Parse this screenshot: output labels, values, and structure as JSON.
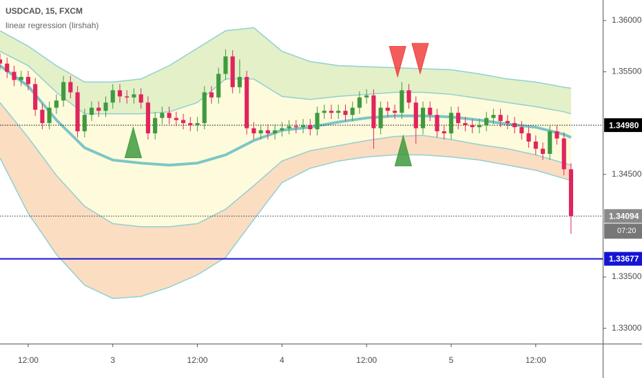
{
  "chart_data": {
    "type": "candlestick",
    "title": "USDCAD, 15, FXCM",
    "subtitle": "linear regression (lirshah)",
    "up_color": "#3f9a3f",
    "down_color": "#e0245e",
    "xlim": [
      0,
      85.5
    ],
    "xticks": [
      {
        "value": 4,
        "label": "12:00"
      },
      {
        "value": 16,
        "label": "3"
      },
      {
        "value": 28,
        "label": "12:00"
      },
      {
        "value": 40,
        "label": "4"
      },
      {
        "value": 52,
        "label": "12:00"
      },
      {
        "value": 64,
        "label": "5"
      },
      {
        "value": 76,
        "label": "12:00"
      }
    ],
    "ylim": [
      1.3285,
      1.362
    ],
    "yticks": [
      {
        "value": 1.36,
        "label": "1.36000"
      },
      {
        "value": 1.355,
        "label": "1.35500"
      },
      {
        "value": 1.345,
        "label": "1.34500"
      },
      {
        "value": 1.335,
        "label": "1.33500"
      },
      {
        "value": 1.33,
        "label": "1.33000"
      }
    ],
    "grid": false,
    "candles": [
      [
        1.3562,
        1.3568,
        1.3552,
        1.3558
      ],
      [
        1.3558,
        1.3564,
        1.3544,
        1.355
      ],
      [
        1.355,
        1.3556,
        1.3536,
        1.3542
      ],
      [
        1.3542,
        1.3551,
        1.3536,
        1.3545
      ],
      [
        1.3545,
        1.3551,
        1.3532,
        1.3538
      ],
      [
        1.3538,
        1.3544,
        1.3507,
        1.3513
      ],
      [
        1.3513,
        1.3519,
        1.3494,
        1.35
      ],
      [
        1.35,
        1.3521,
        1.3494,
        1.3515
      ],
      [
        1.3515,
        1.3528,
        1.3509,
        1.3522
      ],
      [
        1.3522,
        1.3546,
        1.3516,
        1.354
      ],
      [
        1.354,
        1.3546,
        1.3524,
        1.353
      ],
      [
        1.353,
        1.3536,
        1.3486,
        1.3492
      ],
      [
        1.3492,
        1.3514,
        1.3486,
        1.3508
      ],
      [
        1.3508,
        1.3521,
        1.3502,
        1.3515
      ],
      [
        1.3515,
        1.3521,
        1.3506,
        1.3512
      ],
      [
        1.3512,
        1.3526,
        1.3506,
        1.352
      ],
      [
        1.352,
        1.3538,
        1.3514,
        1.3532
      ],
      [
        1.3532,
        1.3538,
        1.352,
        1.3526
      ],
      [
        1.3526,
        1.3532,
        1.3519,
        1.3525
      ],
      [
        1.3525,
        1.3534,
        1.3519,
        1.3528
      ],
      [
        1.3528,
        1.3534,
        1.3514,
        1.352
      ],
      [
        1.352,
        1.3526,
        1.3484,
        1.349
      ],
      [
        1.349,
        1.3511,
        1.3484,
        1.3505
      ],
      [
        1.3505,
        1.3516,
        1.3499,
        1.351
      ],
      [
        1.351,
        1.3516,
        1.3499,
        1.3505
      ],
      [
        1.3505,
        1.3511,
        1.3497,
        1.3503
      ],
      [
        1.3503,
        1.3509,
        1.3494,
        1.35
      ],
      [
        1.35,
        1.3506,
        1.3492,
        1.3498
      ],
      [
        1.3498,
        1.3506,
        1.3492,
        1.35
      ],
      [
        1.35,
        1.3536,
        1.3494,
        1.353
      ],
      [
        1.353,
        1.3536,
        1.3519,
        1.3525
      ],
      [
        1.3525,
        1.3554,
        1.3519,
        1.3548
      ],
      [
        1.3548,
        1.3572,
        1.3542,
        1.3565
      ],
      [
        1.3565,
        1.3571,
        1.3529,
        1.3535
      ],
      [
        1.3535,
        1.3562,
        1.3529,
        1.3545
      ],
      [
        1.3545,
        1.3551,
        1.3489,
        1.3495
      ],
      [
        1.3495,
        1.3501,
        1.3484,
        1.349
      ],
      [
        1.349,
        1.3499,
        1.3484,
        1.3493
      ],
      [
        1.3493,
        1.3499,
        1.3484,
        1.349
      ],
      [
        1.349,
        1.3499,
        1.3484,
        1.3493
      ],
      [
        1.3493,
        1.3501,
        1.3487,
        1.3495
      ],
      [
        1.3495,
        1.3503,
        1.3489,
        1.3497
      ],
      [
        1.3497,
        1.3503,
        1.349,
        1.3496
      ],
      [
        1.3496,
        1.3504,
        1.349,
        1.3498
      ],
      [
        1.3498,
        1.3504,
        1.3488,
        1.3494
      ],
      [
        1.3494,
        1.3516,
        1.3488,
        1.351
      ],
      [
        1.351,
        1.3518,
        1.3504,
        1.3512
      ],
      [
        1.3512,
        1.3518,
        1.3504,
        1.351
      ],
      [
        1.351,
        1.3518,
        1.3504,
        1.3512
      ],
      [
        1.3512,
        1.3518,
        1.3502,
        1.3508
      ],
      [
        1.3508,
        1.3521,
        1.3502,
        1.3515
      ],
      [
        1.3515,
        1.3531,
        1.3509,
        1.3525
      ],
      [
        1.3525,
        1.3533,
        1.3519,
        1.3527
      ],
      [
        1.3527,
        1.3533,
        1.3475,
        1.3495
      ],
      [
        1.3495,
        1.3521,
        1.3489,
        1.3515
      ],
      [
        1.3515,
        1.3521,
        1.3506,
        1.3512
      ],
      [
        1.3512,
        1.3518,
        1.3504,
        1.351
      ],
      [
        1.351,
        1.354,
        1.3504,
        1.3532
      ],
      [
        1.3532,
        1.3538,
        1.3514,
        1.352
      ],
      [
        1.352,
        1.3526,
        1.348,
        1.3495
      ],
      [
        1.3495,
        1.3521,
        1.3489,
        1.3515
      ],
      [
        1.3515,
        1.3521,
        1.3502,
        1.3508
      ],
      [
        1.3508,
        1.3514,
        1.3486,
        1.3492
      ],
      [
        1.3492,
        1.3498,
        1.3484,
        1.349
      ],
      [
        1.349,
        1.3516,
        1.3484,
        1.351
      ],
      [
        1.351,
        1.3516,
        1.3494,
        1.35
      ],
      [
        1.35,
        1.3506,
        1.3492,
        1.3498
      ],
      [
        1.3498,
        1.3504,
        1.349,
        1.3496
      ],
      [
        1.3496,
        1.3504,
        1.349,
        1.3498
      ],
      [
        1.3498,
        1.3511,
        1.3492,
        1.3505
      ],
      [
        1.3505,
        1.3514,
        1.3499,
        1.3508
      ],
      [
        1.3508,
        1.3514,
        1.3496,
        1.3502
      ],
      [
        1.3502,
        1.3508,
        1.3494,
        1.35
      ],
      [
        1.35,
        1.3506,
        1.349,
        1.3496
      ],
      [
        1.3496,
        1.3502,
        1.3484,
        1.349
      ],
      [
        1.349,
        1.3496,
        1.3476,
        1.3482
      ],
      [
        1.3482,
        1.3488,
        1.3469,
        1.3475
      ],
      [
        1.3475,
        1.3481,
        1.3464,
        1.347
      ],
      [
        1.347,
        1.3498,
        1.3464,
        1.3492
      ],
      [
        1.3492,
        1.3498,
        1.3479,
        1.3485
      ],
      [
        1.3485,
        1.3491,
        1.3449,
        1.3455
      ],
      [
        1.3455,
        1.3461,
        1.3392,
        1.34094
      ]
    ],
    "bands": {
      "x": [
        0,
        4,
        8,
        12,
        16,
        20,
        24,
        28,
        32,
        36,
        40,
        44,
        48,
        52,
        56,
        60,
        64,
        68,
        72,
        76,
        80,
        81
      ],
      "fill_colors": [
        "#e3f0c8",
        "#fdfbdb",
        "#fbddc2"
      ],
      "line_color": "#8fd0d2",
      "mid_color": "#7cc6c8",
      "upper_outer": [
        1.359,
        1.3575,
        1.3556,
        1.354,
        1.354,
        1.3543,
        1.3556,
        1.3573,
        1.359,
        1.3593,
        1.357,
        1.356,
        1.3556,
        1.3555,
        1.3554,
        1.3553,
        1.3552,
        1.3548,
        1.3543,
        1.354,
        1.3535,
        1.3534
      ],
      "upper_inner": [
        1.357,
        1.3556,
        1.353,
        1.3509,
        1.3509,
        1.3509,
        1.3511,
        1.352,
        1.3543,
        1.3543,
        1.3526,
        1.3523,
        1.3526,
        1.3528,
        1.353,
        1.353,
        1.3528,
        1.3524,
        1.352,
        1.3516,
        1.3511,
        1.3509
      ],
      "mid": [
        1.3556,
        1.3536,
        1.3503,
        1.3476,
        1.3464,
        1.3461,
        1.3459,
        1.3461,
        1.3469,
        1.3483,
        1.3493,
        1.3496,
        1.3501,
        1.3505,
        1.3507,
        1.3507,
        1.3506,
        1.3503,
        1.3499,
        1.3496,
        1.3489,
        1.3486
      ],
      "lower_inner": [
        1.352,
        1.3486,
        1.3449,
        1.3419,
        1.3402,
        1.3399,
        1.3399,
        1.3402,
        1.3416,
        1.3439,
        1.3463,
        1.3473,
        1.3478,
        1.3483,
        1.3487,
        1.3488,
        1.3484,
        1.3479,
        1.3475,
        1.3469,
        1.3461,
        1.3459
      ],
      "lower_outer": [
        1.3466,
        1.3412,
        1.3372,
        1.3342,
        1.3329,
        1.3331,
        1.334,
        1.3352,
        1.3369,
        1.3406,
        1.3442,
        1.3456,
        1.3463,
        1.3467,
        1.3469,
        1.3469,
        1.3467,
        1.3464,
        1.3459,
        1.3454,
        1.3446,
        1.3444
      ]
    },
    "markers": [
      {
        "x": 18.9,
        "y": 1.3481,
        "direction": "up",
        "color": "#3f9a3f"
      },
      {
        "x": 57.2,
        "y": 1.3473,
        "direction": "up",
        "color": "#3f9a3f"
      },
      {
        "x": 56.4,
        "y": 1.356,
        "direction": "down",
        "color": "#f0413f"
      },
      {
        "x": 59.6,
        "y": 1.3563,
        "direction": "down",
        "color": "#f0413f"
      }
    ],
    "price_lines": [
      {
        "value": 1.3498,
        "label": "1.34980",
        "color": "#000000",
        "style": "dotted",
        "label_bg": "#000000"
      },
      {
        "value": 1.34094,
        "label": "1.34094",
        "color": "#333333",
        "style": "dotted",
        "label_bg": "#8a8a8a",
        "sublabel": "07:20"
      },
      {
        "value": 1.33677,
        "label": "1.33677",
        "color": "#1414d4",
        "style": "solid",
        "label_bg": "#1414d4"
      }
    ]
  }
}
